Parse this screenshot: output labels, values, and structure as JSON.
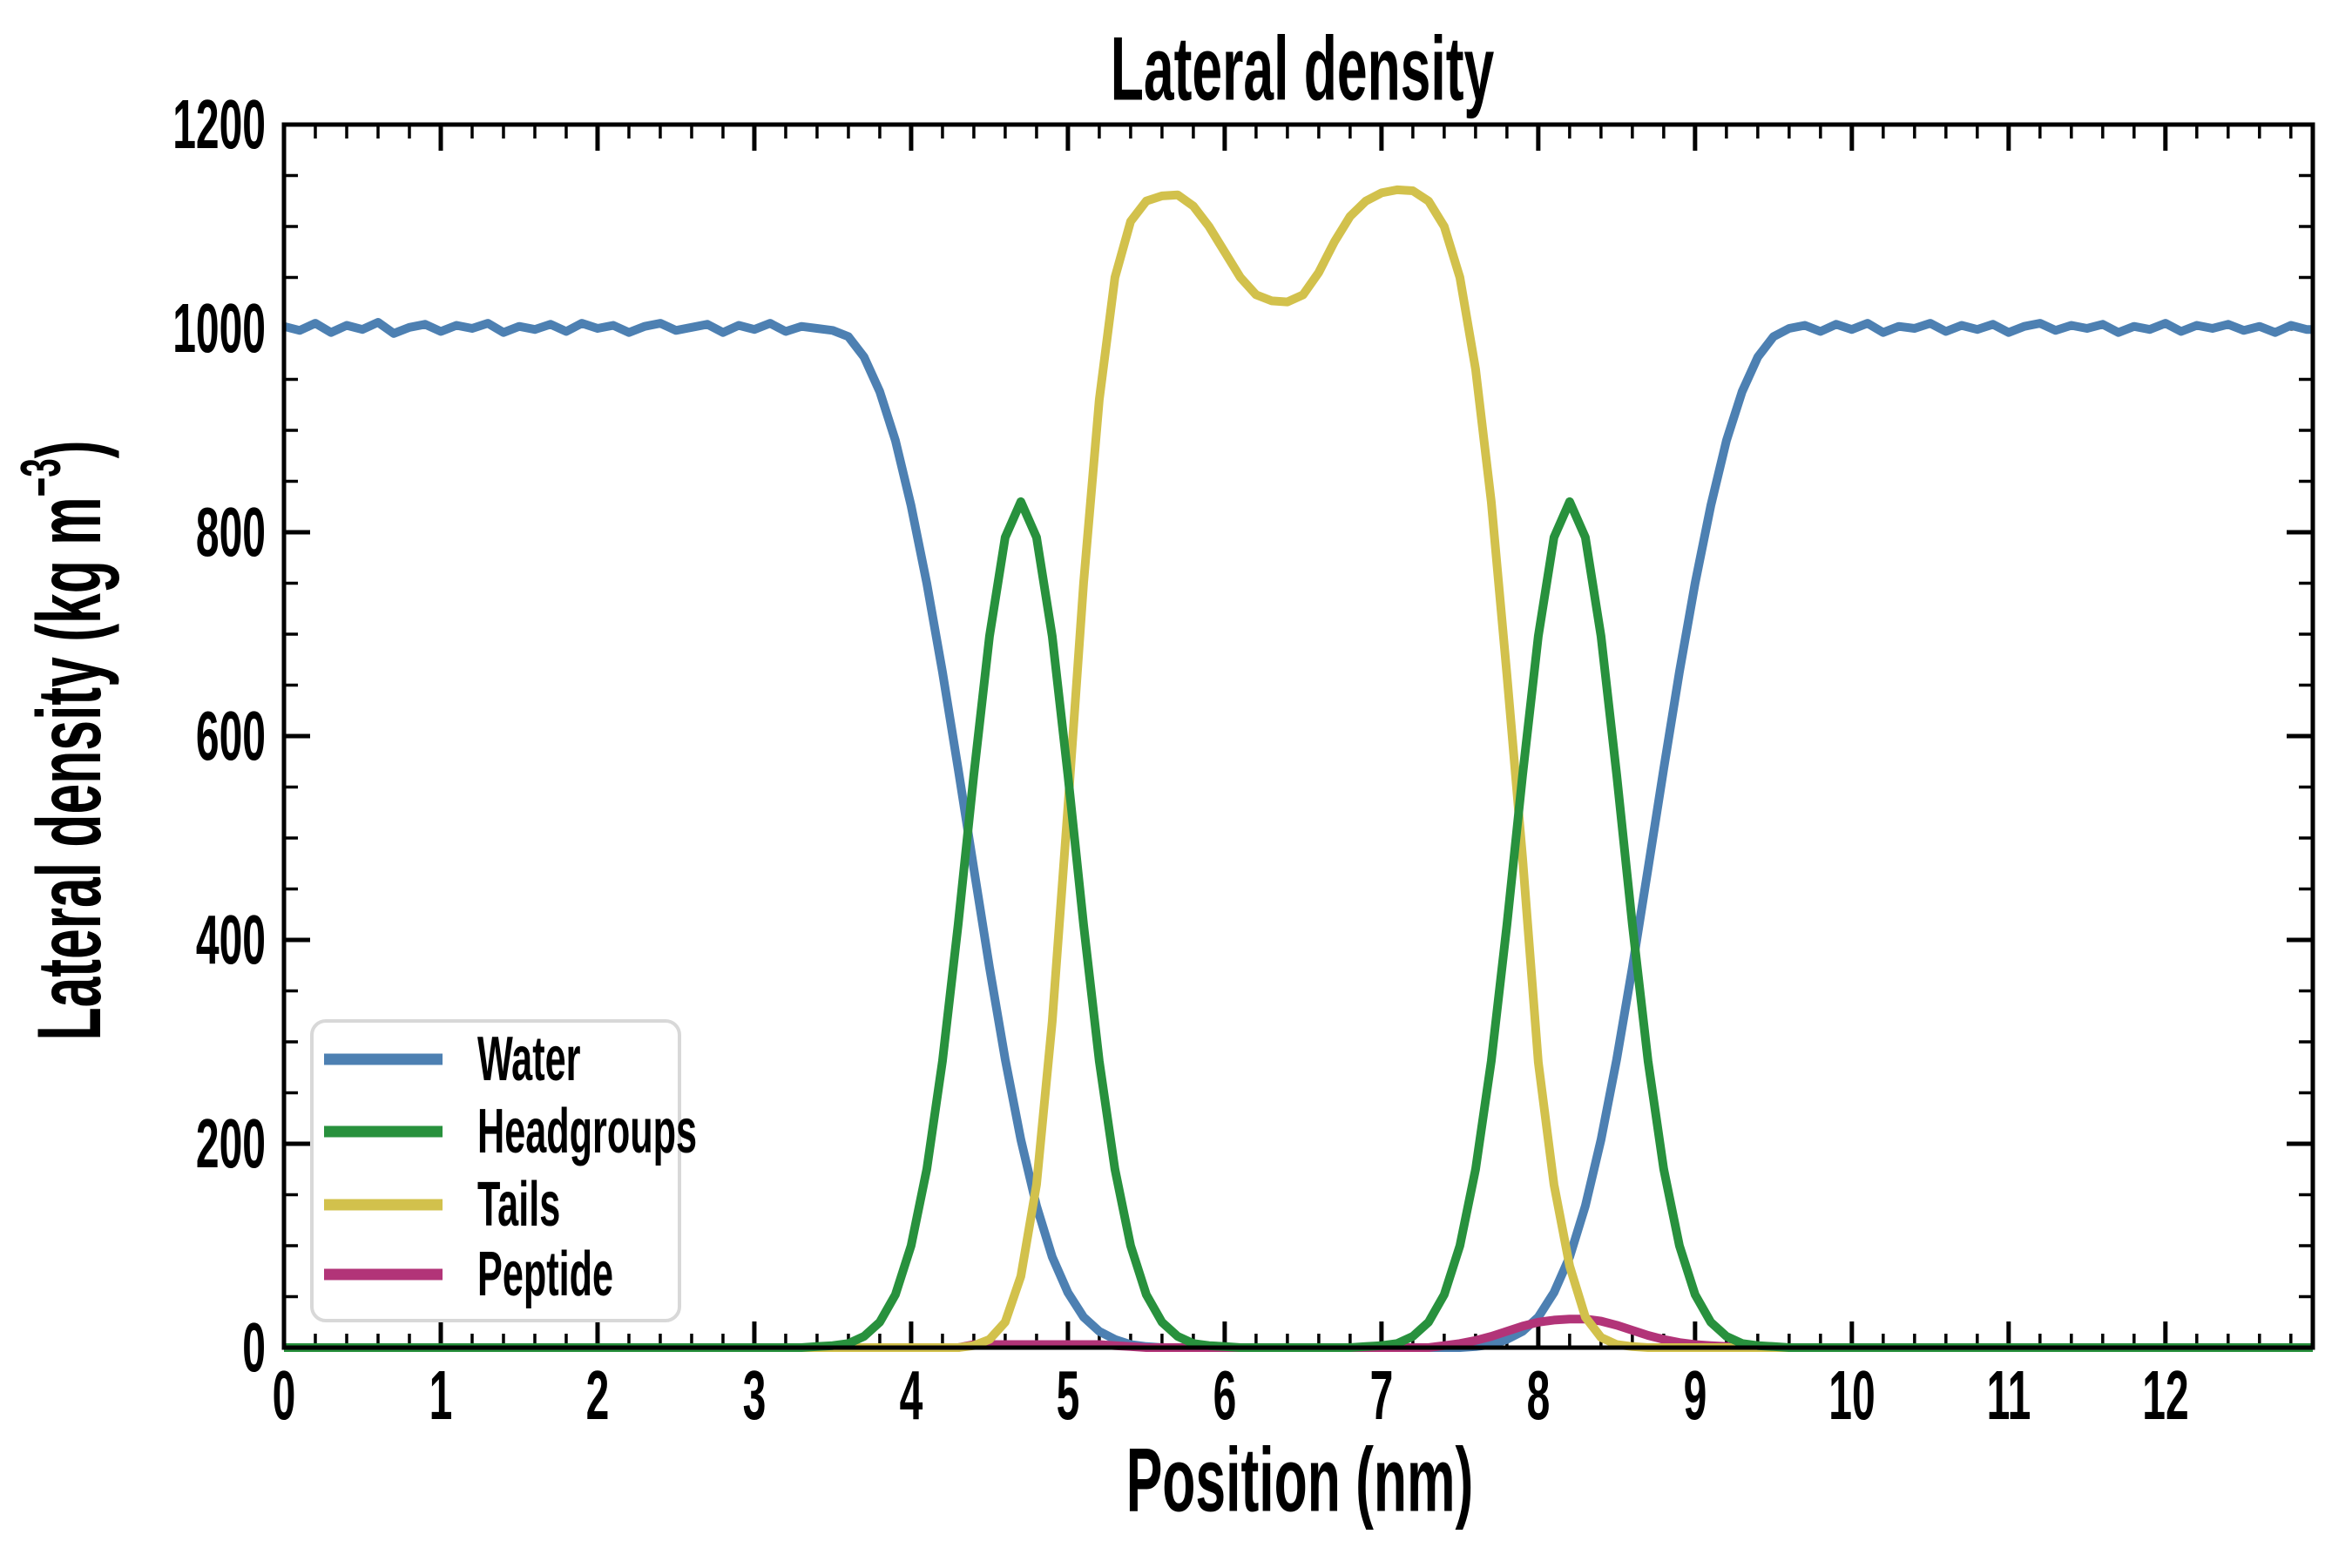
{
  "title": "Lateral density",
  "axes": {
    "xlabel": "Position (nm)",
    "ylabel_prefix": "Lateral density (kg m",
    "ylabel_sup": "−3",
    "ylabel_suffix": ")"
  },
  "legend": {
    "items": [
      {
        "label": "Water",
        "color": "#4d80b2"
      },
      {
        "label": "Headgroups",
        "color": "#28913d"
      },
      {
        "label": "Tails",
        "color": "#d2c14c"
      },
      {
        "label": "Peptide",
        "color": "#b23478"
      }
    ],
    "position": "lower left",
    "border_color": "#d8d8d8"
  },
  "chart_data": {
    "type": "line",
    "title": "Lateral density",
    "xlabel": "Position (nm)",
    "ylabel": "Lateral density (kg m^-3)",
    "xlim": [
      0,
      12.94
    ],
    "ylim": [
      0,
      1200
    ],
    "x_major_ticks": [
      0,
      1,
      2,
      3,
      4,
      5,
      6,
      7,
      8,
      9,
      10,
      11,
      12
    ],
    "x_minor_step": 0.2,
    "y_major_ticks": [
      0,
      200,
      400,
      600,
      800,
      1000,
      1200
    ],
    "y_minor_step": 50,
    "grid": false,
    "tick_direction": "in",
    "legend_position": "lower left",
    "x_start": 0.0,
    "x_step": 0.1,
    "series": [
      {
        "name": "Water",
        "color": "#4d80b2",
        "values": [
          1002,
          998,
          1005,
          996,
          1003,
          999,
          1006,
          995,
          1001,
          1004,
          997,
          1003,
          1000,
          1005,
          996,
          1002,
          999,
          1004,
          997,
          1005,
          1000,
          1003,
          996,
          1002,
          1005,
          998,
          1001,
          1004,
          996,
          1003,
          999,
          1005,
          997,
          1002,
          1000,
          998,
          992,
          972,
          938,
          890,
          826,
          750,
          663,
          568,
          470,
          373,
          283,
          204,
          139,
          89,
          54,
          30,
          16,
          8,
          3,
          1,
          0,
          0,
          0,
          0,
          0,
          0,
          0,
          0,
          0,
          0,
          0,
          0,
          0,
          0,
          0,
          0,
          0,
          0,
          0,
          0,
          1,
          3,
          8,
          16,
          30,
          54,
          89,
          139,
          204,
          283,
          373,
          470,
          568,
          663,
          750,
          826,
          890,
          938,
          972,
          992,
          1000,
          1003,
          997,
          1004,
          999,
          1005,
          996,
          1002,
          1000,
          1005,
          997,
          1003,
          999,
          1004,
          996,
          1002,
          1005,
          998,
          1003,
          1000,
          1004,
          996,
          1002,
          999,
          1005,
          997,
          1003,
          1000,
          1004,
          998,
          1002,
          996,
          1003,
          999
        ]
      },
      {
        "name": "Peptide",
        "color": "#b23478",
        "values": [
          0,
          0,
          0,
          0,
          0,
          0,
          0,
          0,
          0,
          0,
          0,
          0,
          0,
          0,
          0,
          0,
          0,
          0,
          0,
          0,
          0,
          0,
          0,
          0,
          0,
          0,
          0,
          0,
          0,
          0,
          0,
          0,
          0,
          0,
          0,
          0,
          0,
          0,
          0,
          0,
          0,
          0,
          0,
          0,
          3,
          3,
          3,
          3,
          3,
          3,
          3,
          3,
          3,
          2,
          1,
          0,
          0,
          0,
          0,
          0,
          0,
          0,
          0,
          0,
          0,
          0,
          0,
          0,
          0,
          0,
          0,
          0,
          0,
          0,
          2,
          4,
          7,
          11,
          16,
          21,
          25,
          27,
          28,
          28,
          26,
          22,
          17,
          12,
          8,
          5,
          3,
          2,
          1,
          0,
          0,
          0,
          0,
          0,
          0,
          0,
          0,
          0,
          0,
          0,
          0,
          0,
          0,
          0,
          0,
          0,
          0,
          0,
          0,
          0,
          0,
          0,
          0,
          0,
          0,
          0,
          0,
          0,
          0,
          0,
          0,
          0,
          0,
          0,
          0,
          0
        ]
      },
      {
        "name": "Tails",
        "color": "#d2c14c",
        "values": [
          0,
          0,
          0,
          0,
          0,
          0,
          0,
          0,
          0,
          0,
          0,
          0,
          0,
          0,
          0,
          0,
          0,
          0,
          0,
          0,
          0,
          0,
          0,
          0,
          0,
          0,
          0,
          0,
          0,
          0,
          0,
          0,
          0,
          0,
          0,
          0,
          0,
          0,
          0,
          0,
          0,
          0,
          0,
          0,
          2,
          8,
          25,
          70,
          160,
          320,
          530,
          750,
          930,
          1050,
          1105,
          1125,
          1130,
          1131,
          1120,
          1100,
          1075,
          1050,
          1033,
          1027,
          1026,
          1033,
          1055,
          1085,
          1110,
          1125,
          1133,
          1136,
          1135,
          1125,
          1100,
          1050,
          960,
          830,
          660,
          480,
          280,
          160,
          80,
          30,
          10,
          3,
          1,
          0,
          0,
          0,
          0,
          0,
          0,
          0,
          0,
          0,
          0,
          0,
          0,
          0,
          0,
          0,
          0,
          0,
          0,
          0,
          0,
          0,
          0,
          0,
          0,
          0,
          0,
          0,
          0,
          0,
          0,
          0,
          0,
          0,
          0,
          0,
          0,
          0,
          0,
          0,
          0,
          0,
          0,
          0
        ]
      },
      {
        "name": "Headgroups",
        "color": "#28913d",
        "values": [
          0,
          0,
          0,
          0,
          0,
          0,
          0,
          0,
          0,
          0,
          0,
          0,
          0,
          0,
          0,
          0,
          0,
          0,
          0,
          0,
          0,
          0,
          0,
          0,
          0,
          0,
          0,
          0,
          0,
          0,
          0,
          0,
          0,
          0,
          1,
          2,
          4,
          11,
          25,
          52,
          100,
          175,
          281,
          415,
          562,
          698,
          795,
          830,
          795,
          698,
          562,
          415,
          281,
          175,
          100,
          52,
          25,
          11,
          4,
          2,
          1,
          0,
          0,
          0,
          0,
          0,
          0,
          0,
          0,
          1,
          2,
          4,
          11,
          25,
          52,
          100,
          175,
          281,
          415,
          562,
          698,
          795,
          830,
          795,
          698,
          562,
          415,
          281,
          175,
          100,
          52,
          25,
          11,
          4,
          2,
          1,
          0,
          0,
          0,
          0,
          0,
          0,
          0,
          0,
          0,
          0,
          0,
          0,
          0,
          0,
          0,
          0,
          0,
          0,
          0,
          0,
          0,
          0,
          0,
          0,
          0,
          0,
          0,
          0,
          0,
          0,
          0,
          0,
          0,
          0
        ]
      }
    ]
  }
}
